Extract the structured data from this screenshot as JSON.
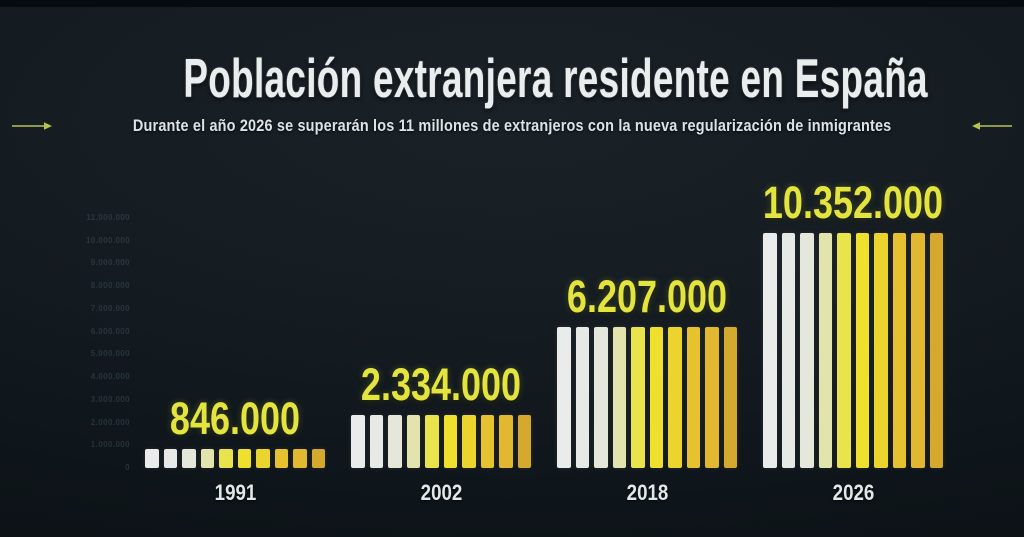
{
  "header": {
    "title": "Población extranjera residente en España",
    "subtitle": "Durante el año 2026 se superarán los 11 millones de extranjeros con la nueva regularización de inmigrantes"
  },
  "chart_data": {
    "type": "bar",
    "title": "Población extranjera residente en España",
    "subtitle": "Durante el año 2026 se superarán los 11 millones de extranjeros con la nueva regularización de inmigrantes",
    "categories": [
      "1991",
      "2002",
      "2018",
      "2026"
    ],
    "values": [
      846000,
      2334000,
      6207000,
      10352000
    ],
    "value_labels": [
      "846.000",
      "2.334.000",
      "6.207.000",
      "10.352.000"
    ],
    "ylabel": "",
    "xlabel": "",
    "ylim": [
      0,
      11000000
    ],
    "y_ticks": [
      "11.000.000",
      "10.000.000",
      "9.000.000",
      "8.000.000",
      "7.000.000",
      "6.000.000",
      "5.000.000",
      "4.000.000",
      "3.000.000",
      "2.000.000",
      "1.000.000",
      "0"
    ],
    "grid": false,
    "legend": "none",
    "bar_style": "each bar drawn as 10 vertical stripes fading from white to gold",
    "stripes_per_bar": 10,
    "stripe_colors": [
      "#e9eceb",
      "#e6e9e6",
      "#e5e7db",
      "#e3e3ae",
      "#eae44c",
      "#efe02e",
      "#ecd42e",
      "#e6c230",
      "#e2b830",
      "#d5a92d"
    ],
    "colors": {
      "background": "#141b21",
      "title_text": "#e9edee",
      "subtitle_text": "#dde3e5",
      "value_label": "#e4e43e",
      "year_label": "#e2e7e8",
      "arrow": "#b6c44e",
      "axis_tick_label": "#22323a"
    }
  }
}
